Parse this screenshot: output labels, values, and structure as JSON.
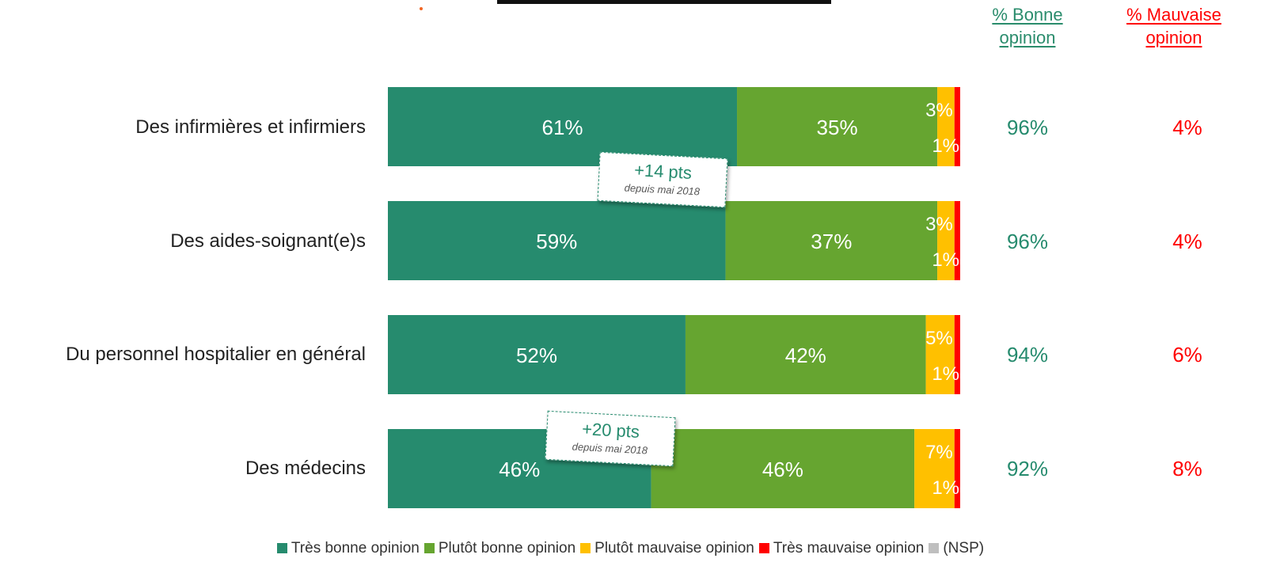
{
  "header": {
    "good_label_line1": "% Bonne",
    "good_label_line2": "opinion",
    "bad_label_line1": "% Mauvaise",
    "bad_label_line2": "opinion"
  },
  "colors": {
    "tres_bonne": "#268b6e",
    "plutot_bonne": "#66a530",
    "plutot_mauvaise": "#ffc000",
    "tres_mauvaise": "#ff0000",
    "nsp": "#bfbfbf",
    "good_text": "#268b6e",
    "bad_text": "#ff0000"
  },
  "callouts": [
    {
      "main": "+14 pts",
      "sub": "depuis mai 2018"
    },
    {
      "main": "+20 pts",
      "sub": "depuis mai 2018"
    }
  ],
  "chart_data": {
    "type": "bar",
    "orientation": "horizontal-stacked",
    "categories": [
      "Des infirmières et infirmiers",
      "Des aides-soignant(e)s",
      "Du personnel hospitalier en général",
      "Des médecins"
    ],
    "series": [
      {
        "name": "Très bonne opinion",
        "values": [
          61,
          59,
          52,
          46
        ],
        "labels": [
          "61%",
          "59%",
          "52%",
          "46%"
        ]
      },
      {
        "name": "Plutôt bonne opinion",
        "values": [
          35,
          37,
          42,
          46
        ],
        "labels": [
          "35%",
          "37%",
          "42%",
          "46%"
        ]
      },
      {
        "name": "Plutôt mauvaise opinion",
        "values": [
          3,
          3,
          5,
          7
        ],
        "labels": [
          "3%",
          "3%",
          "5%",
          "7%"
        ]
      },
      {
        "name": "Très mauvaise opinion",
        "values": [
          1,
          1,
          1,
          1
        ],
        "labels": [
          "1%",
          "1%",
          "1%",
          "1%"
        ]
      },
      {
        "name": "(NSP)",
        "values": [
          0,
          0,
          0,
          0
        ]
      }
    ],
    "totals_good": [
      "96%",
      "96%",
      "94%",
      "92%"
    ],
    "totals_bad": [
      "4%",
      "4%",
      "6%",
      "8%"
    ],
    "xlim": [
      0,
      100
    ],
    "legend_position": "bottom"
  }
}
